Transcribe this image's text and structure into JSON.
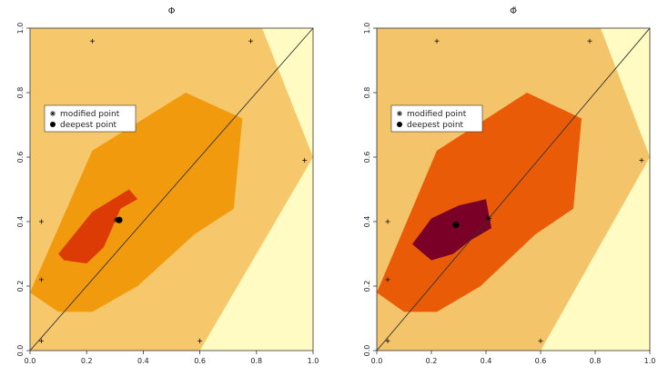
{
  "chart_data": [
    {
      "type": "heatmap",
      "title": "Φ",
      "xlim": [
        0,
        1
      ],
      "ylim": [
        0,
        1
      ],
      "x_ticks": [
        "0.0",
        "0.2",
        "0.4",
        "0.6",
        "0.8",
        "1.0"
      ],
      "y_ticks": [
        "0.0",
        "0.2",
        "0.4",
        "0.6",
        "0.8",
        "1.0"
      ],
      "grid": false,
      "legend": {
        "placement": "upper-left",
        "entries": [
          {
            "symbol": "asterisk",
            "label": "modified point"
          },
          {
            "symbol": "filled-circle",
            "label": "deepest point"
          }
        ]
      },
      "colors": [
        "#fffbc2",
        "#f7c86b",
        "#f29a0e",
        "#dd3b05"
      ],
      "regions": [
        {
          "level": 1,
          "polygon": [
            [
              0,
              0
            ],
            [
              0,
              1
            ],
            [
              0.82,
              1
            ],
            [
              1,
              0.6
            ],
            [
              0.6,
              0
            ],
            [
              0,
              0
            ]
          ]
        },
        {
          "level": 2,
          "polygon": [
            [
              0,
              0.18
            ],
            [
              0.05,
              0.28
            ],
            [
              0.22,
              0.62
            ],
            [
              0.55,
              0.8
            ],
            [
              0.75,
              0.72
            ],
            [
              0.72,
              0.44
            ],
            [
              0.58,
              0.36
            ],
            [
              0.38,
              0.2
            ],
            [
              0.22,
              0.12
            ],
            [
              0.1,
              0.12
            ],
            [
              0,
              0.18
            ]
          ]
        },
        {
          "level": 3,
          "polygon": [
            [
              0.1,
              0.3
            ],
            [
              0.22,
              0.43
            ],
            [
              0.35,
              0.5
            ],
            [
              0.38,
              0.47
            ],
            [
              0.32,
              0.44
            ],
            [
              0.26,
              0.32
            ],
            [
              0.2,
              0.27
            ],
            [
              0.12,
              0.28
            ],
            [
              0.1,
              0.3
            ]
          ]
        }
      ],
      "diagonal": [
        [
          0,
          0
        ],
        [
          1,
          1
        ]
      ],
      "data_points": [
        {
          "x": 0.04,
          "y": 0.03
        },
        {
          "x": 0.04,
          "y": 0.22
        },
        {
          "x": 0.04,
          "y": 0.4
        },
        {
          "x": 0.22,
          "y": 0.96
        },
        {
          "x": 0.78,
          "y": 0.96
        },
        {
          "x": 0.97,
          "y": 0.59
        },
        {
          "x": 0.6,
          "y": 0.03
        }
      ],
      "modified_point": {
        "x": 0.305,
        "y": 0.405
      },
      "deepest_point": {
        "x": 0.315,
        "y": 0.405
      }
    },
    {
      "type": "heatmap",
      "title": "Φ̃",
      "xlim": [
        0,
        1
      ],
      "ylim": [
        0,
        1
      ],
      "x_ticks": [
        "0.0",
        "0.2",
        "0.4",
        "0.6",
        "0.8",
        "1.0"
      ],
      "y_ticks": [
        "0.0",
        "0.2",
        "0.4",
        "0.6",
        "0.8",
        "1.0"
      ],
      "grid": false,
      "legend": {
        "placement": "upper-left",
        "entries": [
          {
            "symbol": "asterisk",
            "label": "modified point"
          },
          {
            "symbol": "filled-circle",
            "label": "deepest point"
          }
        ]
      },
      "colors": [
        "#fffbc2",
        "#f4c46a",
        "#e95b06",
        "#7a0028"
      ],
      "regions": [
        {
          "level": 1,
          "polygon": [
            [
              0,
              0
            ],
            [
              0,
              1
            ],
            [
              0.82,
              1
            ],
            [
              1,
              0.6
            ],
            [
              0.6,
              0
            ],
            [
              0,
              0
            ]
          ]
        },
        {
          "level": 2,
          "polygon": [
            [
              0,
              0.18
            ],
            [
              0.05,
              0.28
            ],
            [
              0.22,
              0.62
            ],
            [
              0.55,
              0.8
            ],
            [
              0.75,
              0.72
            ],
            [
              0.72,
              0.44
            ],
            [
              0.58,
              0.36
            ],
            [
              0.38,
              0.2
            ],
            [
              0.22,
              0.12
            ],
            [
              0.1,
              0.12
            ],
            [
              0,
              0.18
            ]
          ]
        },
        {
          "level": 3,
          "polygon": [
            [
              0.13,
              0.33
            ],
            [
              0.2,
              0.41
            ],
            [
              0.3,
              0.45
            ],
            [
              0.4,
              0.47
            ],
            [
              0.42,
              0.38
            ],
            [
              0.34,
              0.34
            ],
            [
              0.28,
              0.3
            ],
            [
              0.2,
              0.28
            ],
            [
              0.13,
              0.33
            ]
          ]
        }
      ],
      "diagonal": [
        [
          0,
          0
        ],
        [
          1,
          1
        ]
      ],
      "data_points": [
        {
          "x": 0.04,
          "y": 0.03
        },
        {
          "x": 0.04,
          "y": 0.22
        },
        {
          "x": 0.04,
          "y": 0.4
        },
        {
          "x": 0.22,
          "y": 0.96
        },
        {
          "x": 0.78,
          "y": 0.96
        },
        {
          "x": 0.97,
          "y": 0.59
        },
        {
          "x": 0.6,
          "y": 0.03
        }
      ],
      "modified_point": {
        "x": 0.41,
        "y": 0.41
      },
      "deepest_point": {
        "x": 0.29,
        "y": 0.39
      }
    }
  ]
}
